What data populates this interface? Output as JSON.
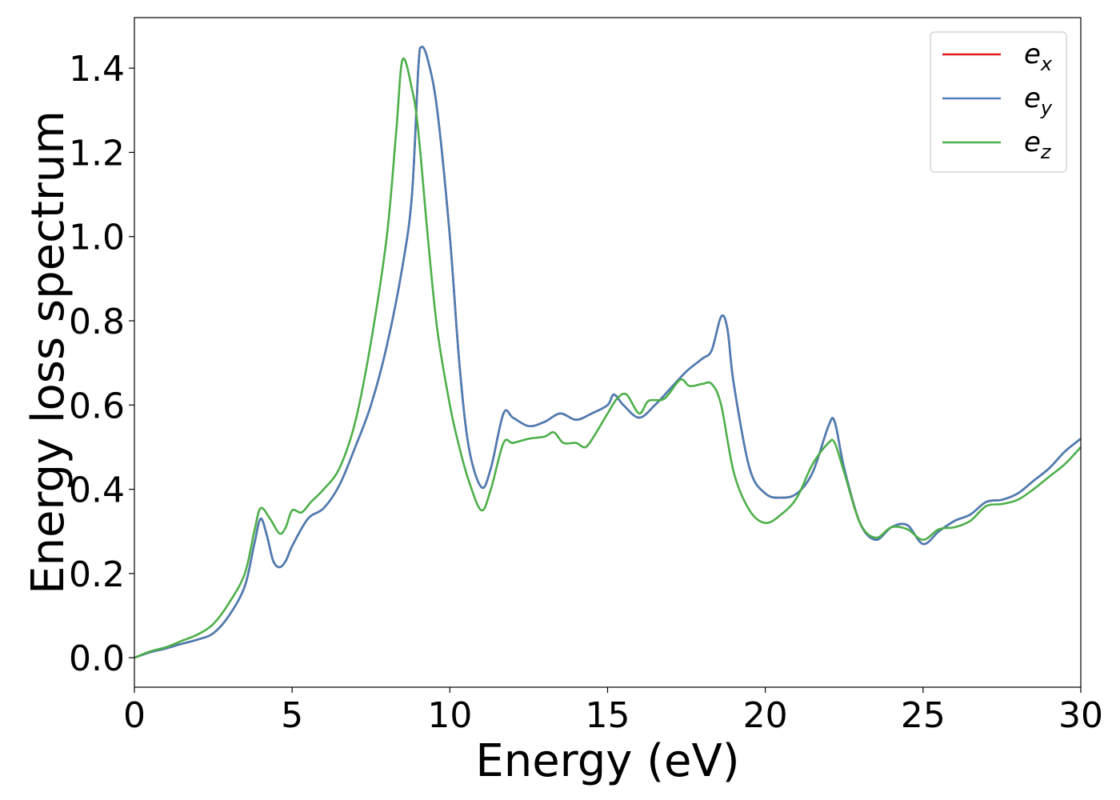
{
  "chart_data": {
    "type": "line",
    "title": "",
    "xlabel": "Energy (eV)",
    "ylabel": "Energy loss spectrum",
    "xlim": [
      0,
      30
    ],
    "ylim": [
      -0.07,
      1.52
    ],
    "xticks": [
      0,
      5,
      10,
      15,
      20,
      25,
      30
    ],
    "xtick_labels": [
      "0",
      "5",
      "10",
      "15",
      "20",
      "25",
      "30"
    ],
    "yticks": [
      0.0,
      0.2,
      0.4,
      0.6,
      0.8,
      1.0,
      1.2,
      1.4
    ],
    "ytick_labels": [
      "0.0",
      "0.2",
      "0.4",
      "0.6",
      "0.8",
      "1.0",
      "1.2",
      "1.4"
    ],
    "grid": false,
    "legend_position": "top-right",
    "series": [
      {
        "name": "e",
        "subscript": "x",
        "color": "#e41a1c",
        "points": [
          [
            0,
            0.0
          ],
          [
            0.5,
            0.013
          ],
          [
            1,
            0.022
          ],
          [
            1.5,
            0.033
          ],
          [
            2,
            0.043
          ],
          [
            2.5,
            0.058
          ],
          [
            3,
            0.1
          ],
          [
            3.5,
            0.17
          ],
          [
            3.8,
            0.27
          ],
          [
            4.0,
            0.33
          ],
          [
            4.2,
            0.29
          ],
          [
            4.4,
            0.23
          ],
          [
            4.6,
            0.215
          ],
          [
            4.8,
            0.23
          ],
          [
            5,
            0.265
          ],
          [
            5.5,
            0.33
          ],
          [
            6,
            0.355
          ],
          [
            6.5,
            0.41
          ],
          [
            7,
            0.5
          ],
          [
            7.5,
            0.6
          ],
          [
            8,
            0.74
          ],
          [
            8.5,
            0.93
          ],
          [
            8.8,
            1.1
          ],
          [
            9.0,
            1.4
          ],
          [
            9.1,
            1.45
          ],
          [
            9.3,
            1.42
          ],
          [
            9.6,
            1.3
          ],
          [
            10,
            1.0
          ],
          [
            10.3,
            0.7
          ],
          [
            10.6,
            0.5
          ],
          [
            11,
            0.405
          ],
          [
            11.3,
            0.45
          ],
          [
            11.7,
            0.58
          ],
          [
            12,
            0.57
          ],
          [
            12.5,
            0.55
          ],
          [
            13,
            0.56
          ],
          [
            13.5,
            0.58
          ],
          [
            14,
            0.565
          ],
          [
            14.5,
            0.58
          ],
          [
            15,
            0.6
          ],
          [
            15.2,
            0.625
          ],
          [
            15.5,
            0.6
          ],
          [
            16,
            0.57
          ],
          [
            16.5,
            0.6
          ],
          [
            17,
            0.64
          ],
          [
            17.5,
            0.68
          ],
          [
            18,
            0.71
          ],
          [
            18.3,
            0.73
          ],
          [
            18.6,
            0.81
          ],
          [
            18.8,
            0.78
          ],
          [
            19,
            0.65
          ],
          [
            19.5,
            0.45
          ],
          [
            20,
            0.39
          ],
          [
            20.5,
            0.38
          ],
          [
            21,
            0.39
          ],
          [
            21.5,
            0.44
          ],
          [
            22,
            0.55
          ],
          [
            22.2,
            0.56
          ],
          [
            22.5,
            0.45
          ],
          [
            23,
            0.32
          ],
          [
            23.5,
            0.28
          ],
          [
            24,
            0.31
          ],
          [
            24.5,
            0.315
          ],
          [
            25,
            0.27
          ],
          [
            25.5,
            0.3
          ],
          [
            26,
            0.325
          ],
          [
            26.5,
            0.34
          ],
          [
            27,
            0.37
          ],
          [
            27.5,
            0.375
          ],
          [
            28,
            0.39
          ],
          [
            28.5,
            0.42
          ],
          [
            29,
            0.45
          ],
          [
            29.5,
            0.49
          ],
          [
            30,
            0.52
          ]
        ]
      },
      {
        "name": "e",
        "subscript": "y",
        "color": "#4a7eb5",
        "points": [
          [
            0,
            0.0
          ],
          [
            0.5,
            0.013
          ],
          [
            1,
            0.022
          ],
          [
            1.5,
            0.033
          ],
          [
            2,
            0.043
          ],
          [
            2.5,
            0.058
          ],
          [
            3,
            0.1
          ],
          [
            3.5,
            0.17
          ],
          [
            3.8,
            0.27
          ],
          [
            4.0,
            0.33
          ],
          [
            4.2,
            0.29
          ],
          [
            4.4,
            0.23
          ],
          [
            4.6,
            0.215
          ],
          [
            4.8,
            0.23
          ],
          [
            5,
            0.265
          ],
          [
            5.5,
            0.33
          ],
          [
            6,
            0.355
          ],
          [
            6.5,
            0.41
          ],
          [
            7,
            0.5
          ],
          [
            7.5,
            0.6
          ],
          [
            8,
            0.74
          ],
          [
            8.5,
            0.93
          ],
          [
            8.8,
            1.1
          ],
          [
            9.0,
            1.4
          ],
          [
            9.1,
            1.45
          ],
          [
            9.3,
            1.42
          ],
          [
            9.6,
            1.3
          ],
          [
            10,
            1.0
          ],
          [
            10.3,
            0.7
          ],
          [
            10.6,
            0.5
          ],
          [
            11,
            0.405
          ],
          [
            11.3,
            0.45
          ],
          [
            11.7,
            0.58
          ],
          [
            12,
            0.57
          ],
          [
            12.5,
            0.55
          ],
          [
            13,
            0.56
          ],
          [
            13.5,
            0.58
          ],
          [
            14,
            0.565
          ],
          [
            14.5,
            0.58
          ],
          [
            15,
            0.6
          ],
          [
            15.2,
            0.625
          ],
          [
            15.5,
            0.6
          ],
          [
            16,
            0.57
          ],
          [
            16.5,
            0.6
          ],
          [
            17,
            0.64
          ],
          [
            17.5,
            0.68
          ],
          [
            18,
            0.71
          ],
          [
            18.3,
            0.73
          ],
          [
            18.6,
            0.81
          ],
          [
            18.8,
            0.78
          ],
          [
            19,
            0.65
          ],
          [
            19.5,
            0.45
          ],
          [
            20,
            0.39
          ],
          [
            20.5,
            0.38
          ],
          [
            21,
            0.39
          ],
          [
            21.5,
            0.44
          ],
          [
            22,
            0.55
          ],
          [
            22.2,
            0.56
          ],
          [
            22.5,
            0.45
          ],
          [
            23,
            0.32
          ],
          [
            23.5,
            0.28
          ],
          [
            24,
            0.31
          ],
          [
            24.5,
            0.315
          ],
          [
            25,
            0.27
          ],
          [
            25.5,
            0.3
          ],
          [
            26,
            0.325
          ],
          [
            26.5,
            0.34
          ],
          [
            27,
            0.37
          ],
          [
            27.5,
            0.375
          ],
          [
            28,
            0.39
          ],
          [
            28.5,
            0.42
          ],
          [
            29,
            0.45
          ],
          [
            29.5,
            0.49
          ],
          [
            30,
            0.52
          ]
        ]
      },
      {
        "name": "e",
        "subscript": "z",
        "color": "#4daf4a",
        "points": [
          [
            0,
            0.0
          ],
          [
            0.5,
            0.015
          ],
          [
            1,
            0.025
          ],
          [
            1.5,
            0.04
          ],
          [
            2,
            0.055
          ],
          [
            2.5,
            0.08
          ],
          [
            3,
            0.13
          ],
          [
            3.5,
            0.2
          ],
          [
            3.8,
            0.3
          ],
          [
            4.0,
            0.355
          ],
          [
            4.3,
            0.33
          ],
          [
            4.6,
            0.295
          ],
          [
            4.8,
            0.31
          ],
          [
            5,
            0.35
          ],
          [
            5.3,
            0.345
          ],
          [
            5.6,
            0.37
          ],
          [
            6,
            0.4
          ],
          [
            6.5,
            0.45
          ],
          [
            7,
            0.56
          ],
          [
            7.5,
            0.75
          ],
          [
            8,
            1.0
          ],
          [
            8.3,
            1.25
          ],
          [
            8.5,
            1.42
          ],
          [
            8.8,
            1.35
          ],
          [
            9.0,
            1.25
          ],
          [
            9.3,
            1.0
          ],
          [
            9.6,
            0.78
          ],
          [
            10,
            0.6
          ],
          [
            10.3,
            0.5
          ],
          [
            10.6,
            0.42
          ],
          [
            11,
            0.35
          ],
          [
            11.3,
            0.4
          ],
          [
            11.7,
            0.51
          ],
          [
            12,
            0.51
          ],
          [
            12.5,
            0.52
          ],
          [
            13,
            0.525
          ],
          [
            13.3,
            0.535
          ],
          [
            13.6,
            0.51
          ],
          [
            14,
            0.51
          ],
          [
            14.3,
            0.5
          ],
          [
            14.6,
            0.53
          ],
          [
            15,
            0.58
          ],
          [
            15.3,
            0.615
          ],
          [
            15.6,
            0.625
          ],
          [
            16,
            0.58
          ],
          [
            16.3,
            0.61
          ],
          [
            16.8,
            0.615
          ],
          [
            17.3,
            0.66
          ],
          [
            17.6,
            0.645
          ],
          [
            18,
            0.65
          ],
          [
            18.3,
            0.65
          ],
          [
            18.6,
            0.6
          ],
          [
            19,
            0.44
          ],
          [
            19.5,
            0.35
          ],
          [
            20,
            0.32
          ],
          [
            20.5,
            0.34
          ],
          [
            21,
            0.38
          ],
          [
            21.5,
            0.46
          ],
          [
            22,
            0.51
          ],
          [
            22.2,
            0.51
          ],
          [
            22.5,
            0.44
          ],
          [
            23,
            0.32
          ],
          [
            23.5,
            0.285
          ],
          [
            24,
            0.31
          ],
          [
            24.5,
            0.305
          ],
          [
            25,
            0.28
          ],
          [
            25.5,
            0.305
          ],
          [
            26,
            0.31
          ],
          [
            26.5,
            0.325
          ],
          [
            27,
            0.36
          ],
          [
            27.5,
            0.365
          ],
          [
            28,
            0.375
          ],
          [
            28.5,
            0.4
          ],
          [
            29,
            0.43
          ],
          [
            29.5,
            0.46
          ],
          [
            30,
            0.5
          ]
        ]
      }
    ]
  }
}
